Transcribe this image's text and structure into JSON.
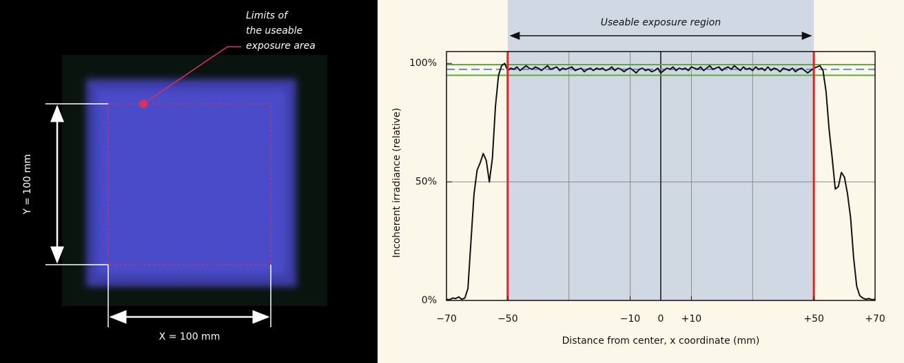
{
  "photo": {
    "annotation": [
      "Limits of",
      "the useable",
      "exposure area"
    ],
    "y_label": "Y = 100 mm",
    "x_label": "X = 100 mm"
  },
  "chart_data": {
    "type": "line",
    "region_label": "Useable exposure region",
    "ylabel": "Incoherent irradiance (relative)",
    "xlabel": "Distance from center, x coordinate (mm)",
    "x": [
      -70,
      -69,
      -68,
      -67,
      -66,
      -65,
      -64,
      -63,
      -62,
      -61,
      -60,
      -59,
      -58,
      -57,
      -56,
      -55,
      -54,
      -53,
      -52,
      -51,
      -50,
      -49,
      -48,
      -47,
      -46,
      -45,
      -44,
      -43,
      -42,
      -41,
      -40,
      -39,
      -38,
      -37,
      -36,
      -35,
      -34,
      -33,
      -32,
      -31,
      -30,
      -29,
      -28,
      -27,
      -26,
      -25,
      -24,
      -23,
      -22,
      -21,
      -20,
      -19,
      -18,
      -17,
      -16,
      -15,
      -14,
      -13,
      -12,
      -11,
      -10,
      -9,
      -8,
      -7,
      -6,
      -5,
      -4,
      -3,
      -2,
      -1,
      0,
      1,
      2,
      3,
      4,
      5,
      6,
      7,
      8,
      9,
      10,
      11,
      12,
      13,
      14,
      15,
      16,
      17,
      18,
      19,
      20,
      21,
      22,
      23,
      24,
      25,
      26,
      27,
      28,
      29,
      30,
      31,
      32,
      33,
      34,
      35,
      36,
      37,
      38,
      39,
      40,
      41,
      42,
      43,
      44,
      45,
      46,
      47,
      48,
      49,
      50,
      51,
      52,
      53,
      54,
      55,
      56,
      57,
      58,
      59,
      60,
      61,
      62,
      63,
      64,
      65,
      66,
      67,
      68,
      69,
      70
    ],
    "values": [
      0.5,
      0.3,
      1,
      0.8,
      1.5,
      0.5,
      1,
      5,
      25,
      45,
      55,
      58,
      62,
      59,
      50,
      60,
      82,
      95,
      99,
      100,
      97,
      98,
      97.5,
      98.5,
      97,
      98,
      99,
      98,
      97.5,
      98.5,
      98,
      97,
      98,
      99,
      97.5,
      98,
      98.5,
      97,
      98,
      97.5,
      98,
      98.5,
      97,
      97.5,
      98,
      96.5,
      97.5,
      98,
      97,
      98,
      97.5,
      98,
      97,
      97.5,
      98.5,
      97,
      98,
      97.5,
      96.5,
      97.5,
      98,
      97,
      96,
      97.5,
      98,
      97,
      97.5,
      96.5,
      97,
      98,
      96,
      97,
      98,
      97.5,
      98.5,
      97,
      98,
      97.5,
      98,
      97,
      98.5,
      98,
      97.5,
      98.5,
      97,
      98,
      99,
      97.5,
      98,
      98.5,
      97,
      98,
      98.5,
      97.5,
      99,
      98,
      97,
      98.5,
      97.5,
      98,
      97,
      98.5,
      97.5,
      98,
      97,
      98.5,
      97,
      98,
      97.5,
      96.5,
      98,
      97.5,
      97,
      98,
      96.5,
      97.5,
      98,
      97,
      96,
      97,
      98,
      98.5,
      99,
      97,
      88,
      72,
      60,
      47,
      48,
      54,
      52,
      45,
      35,
      18,
      6,
      2,
      1,
      0.5,
      0.8,
      0.3,
      0.5
    ],
    "color": "#111111",
    "xlim": [
      -70,
      70
    ],
    "ylim": [
      0,
      105
    ],
    "xticks": [
      {
        "value": -70,
        "label": "−70"
      },
      {
        "value": -50,
        "label": "−50"
      },
      {
        "value": -10,
        "label": "−10"
      },
      0,
      {
        "value": 10,
        "label": "+10"
      },
      {
        "value": 50,
        "label": "+50"
      },
      {
        "value": 70,
        "label": "+70"
      }
    ],
    "yticks": [
      {
        "value": 0,
        "label": "0%"
      },
      {
        "value": 50,
        "label": "50%"
      },
      {
        "value": 100,
        "label": "100%"
      }
    ],
    "xgrid": [
      -30,
      -10,
      10,
      30
    ],
    "ygrid": [
      50
    ],
    "center_line": 0,
    "limits": [
      -50,
      50
    ],
    "limit_color": "#e8221f",
    "region_color": "#d0d9e3",
    "tolerance_band": [
      95,
      99.5
    ],
    "band_color": "#5aab3a",
    "mean": 97.5,
    "mean_color": "#5b8fd0"
  }
}
